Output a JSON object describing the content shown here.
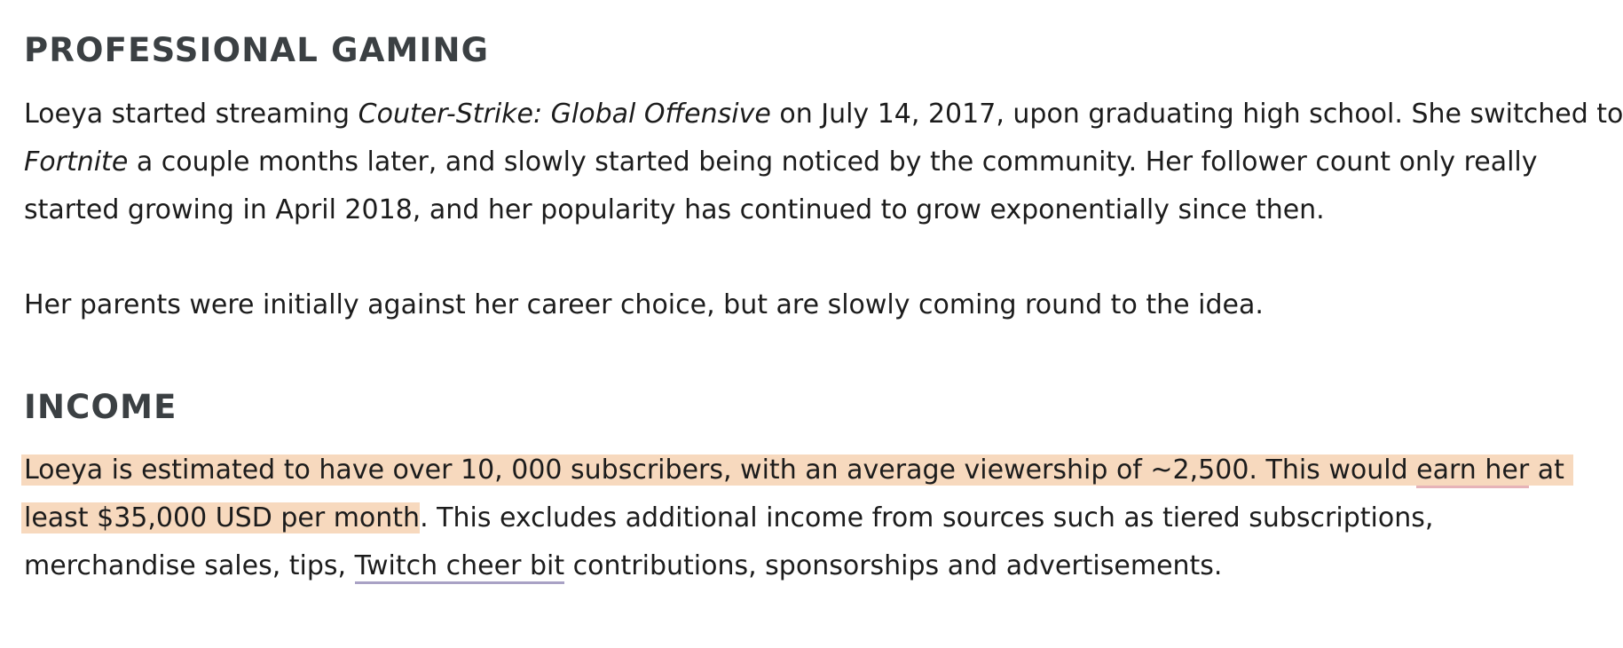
{
  "sections": [
    {
      "heading": "PROFESSIONAL GAMING",
      "paragraph1": {
        "l1_a": "Loeya started streaming ",
        "l1_game": "Couter-Strike: Global Offensive",
        "l1_b": " on July 14, 2017, upon graduating high school. She switched to",
        "l2_game": "Fortnite",
        "l2_b": " a couple months later, and slowly started being noticed by the community. Her follower count only really",
        "l3": "started growing in April 2018, and her popularity has continued to grow exponentially since then."
      },
      "paragraph2": "Her parents were initially against her career choice, but are slowly coming round to the idea."
    },
    {
      "heading": "INCOME",
      "paragraph": {
        "l1_a": "Loeya is estimated to have over 10, 000 subscribers, with an average viewership of ~2,500. This would ",
        "l1_link": "earn her",
        "l1_b": " at",
        "l2_hl": "least $35,000 USD per month",
        "l2_b": ". This excludes additional income from sources such as tiered subscriptions,",
        "l3_a": "merchandise sales, tips, ",
        "l3_link": "Twitch cheer bit",
        "l3_b": " contributions, sponsorships and advertisements."
      }
    }
  ],
  "colors": {
    "heading": "#3b4043",
    "highlight": "#f7d9be",
    "link_underline_pink": "#e6b3b8",
    "link_underline_purple": "#a9a2c5"
  }
}
